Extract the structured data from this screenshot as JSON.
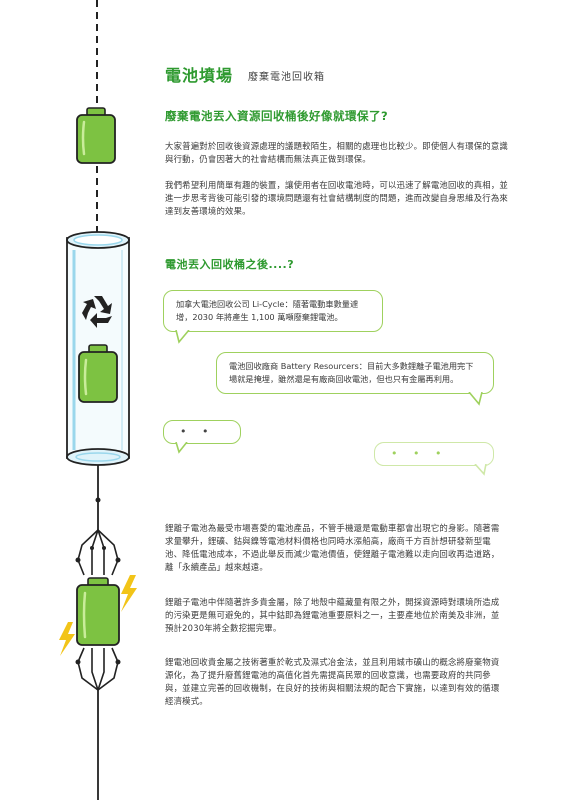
{
  "header": {
    "title": "電池墳場",
    "subtitle": "廢棄電池回收箱"
  },
  "section1": {
    "heading": "廢棄電池丟入資源回收桶後好像就環保了?",
    "paragraphs": [
      "大家普遍對於回收後資源處理的議題較陌生，相關的處理也比較少。即使個人有環保的意識與行動，仍會因著大的社會結構而無法真正做到環保。",
      "我們希望利用簡單有趣的裝置，讓使用者在回收電池時，可以迅速了解電池回收的真相，並進一步思考背後可能引發的環境問題還有社會結構制度的問題，進而改變自身思維及行為來達到友善環境的效果。"
    ]
  },
  "section2": {
    "heading": "電池丟入回收桶之後....?",
    "bubbles": [
      "加拿大電池回收公司 Li-Cycle：隨著電動車數量遽增，2030 年將產生 1,100 萬噸廢棄鋰電池。",
      "電池回收廠商 Battery Resourcers：目前大多數鋰離子電池用完下場就是掩埋，雖然還是有廠商回收電池，但也只有金屬再利用。"
    ],
    "dots": "• • •"
  },
  "section3": {
    "paragraphs": [
      "鋰離子電池為最受市場喜愛的電池產品，不管手機還是電動車都會出現它的身影。隨著需求量攀升，鋰礦、鈷與鎳等電池材料價格也同時水漲船高，廠商千方百計想研發新型電池、降低電池成本，不過此舉反而減少電池價值，使鋰離子電池難以走向回收再造道路，離「永續產品」越來越遠。",
      "鋰離子電池中伴隨著許多貴金屬，除了地殼中蘊藏量有限之外，開採資源時對環境所造成的污染更是無可避免的，其中鈷即為鋰電池重要原料之一，主要產地位於南美及非洲，並預計2030年將全數挖掘完畢。",
      "鋰電池回收貴金屬之技術著重於乾式及濕式冶金法，並且利用城市礦山的概念將廢棄物資源化，為了提升廢舊鋰電池的高值化首先需提高民眾的回收意識，也需要政府的共同參與，並建立完善的回收機制，在良好的技術與相關法規的配合下實施，以達到有效的循環經濟模式。"
    ]
  },
  "colors": {
    "accent": "#2f9a30",
    "battery_green": "#7dc242",
    "bubble_border": "#9fd15e",
    "lightning": "#f2c418"
  },
  "icons": [
    "recycle-icon",
    "battery-icon",
    "lightning-icon"
  ]
}
